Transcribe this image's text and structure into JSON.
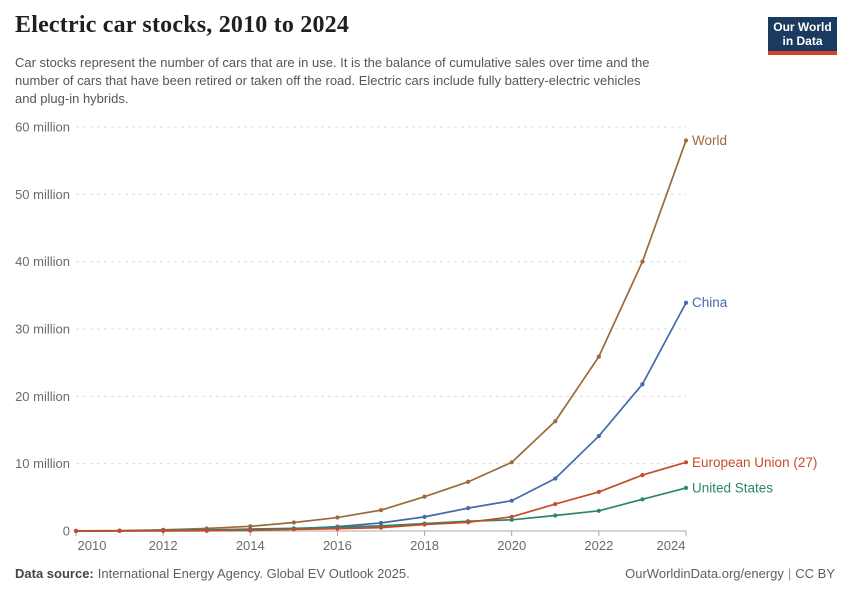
{
  "header": {
    "title": "Electric car stocks, 2010 to 2024",
    "subtitle_lines": [
      "Car stocks represent the number of cars that are in use. It is the balance of cumulative sales over time and the",
      "number of cars that have been retired or taken off the road. Electric cars include fully battery-electric vehicles",
      "and plug-in hybrids."
    ],
    "logo": {
      "line1": "Our World",
      "line2": "in Data",
      "bg_color": "#1b3a5f",
      "bar_color": "#d7402d"
    }
  },
  "chart_data": {
    "type": "line",
    "title": "Electric car stocks, 2010 to 2024",
    "subtitle": "Car stocks represent the number of cars that are in use. It is the balance of cumulative sales over time and the number of cars that have been retired or taken off the road. Electric cars include fully battery-electric vehicles and plug-in hybrids.",
    "xlabel": "",
    "ylabel": "",
    "unit": "million cars",
    "x": [
      2010,
      2011,
      2012,
      2013,
      2014,
      2015,
      2016,
      2017,
      2018,
      2019,
      2020,
      2021,
      2022,
      2023,
      2024
    ],
    "x_ticks": [
      2010,
      2012,
      2014,
      2016,
      2018,
      2020,
      2022,
      2024
    ],
    "y_ticks": [
      0,
      10,
      20,
      30,
      40,
      50,
      60
    ],
    "y_tick_suffix": " million",
    "ylim": [
      0,
      60
    ],
    "grid": "horizontal-dashed",
    "grid_color": "#dcdcdc",
    "axis_color": "#a8a8a8",
    "legend_position": "end-of-line-labels",
    "series": [
      {
        "name": "World",
        "color": "#9c6a3c",
        "values": [
          0.02,
          0.06,
          0.18,
          0.38,
          0.7,
          1.26,
          2.0,
          3.1,
          5.1,
          7.3,
          10.2,
          16.3,
          25.9,
          40.0,
          58.0
        ]
      },
      {
        "name": "China",
        "color": "#4668ac",
        "values": [
          0.0,
          0.01,
          0.02,
          0.03,
          0.08,
          0.3,
          0.65,
          1.2,
          2.1,
          3.4,
          4.5,
          7.8,
          14.1,
          21.8,
          33.9
        ]
      },
      {
        "name": "United States",
        "color": "#2d866a",
        "values": [
          0.0,
          0.02,
          0.07,
          0.17,
          0.29,
          0.4,
          0.56,
          0.76,
          1.1,
          1.45,
          1.66,
          2.3,
          3.0,
          4.7,
          6.4
        ]
      },
      {
        "name": "European Union (27)",
        "color": "#c54c2a",
        "values": [
          0.0,
          0.01,
          0.03,
          0.06,
          0.12,
          0.23,
          0.35,
          0.5,
          0.97,
          1.3,
          2.1,
          4.0,
          5.8,
          8.3,
          10.2
        ]
      }
    ]
  },
  "footer": {
    "source_label": "Data source:",
    "source_text": "International Energy Agency. Global EV Outlook 2025.",
    "link": "OurWorldinData.org/energy",
    "separator": "|",
    "license": "CC BY"
  }
}
